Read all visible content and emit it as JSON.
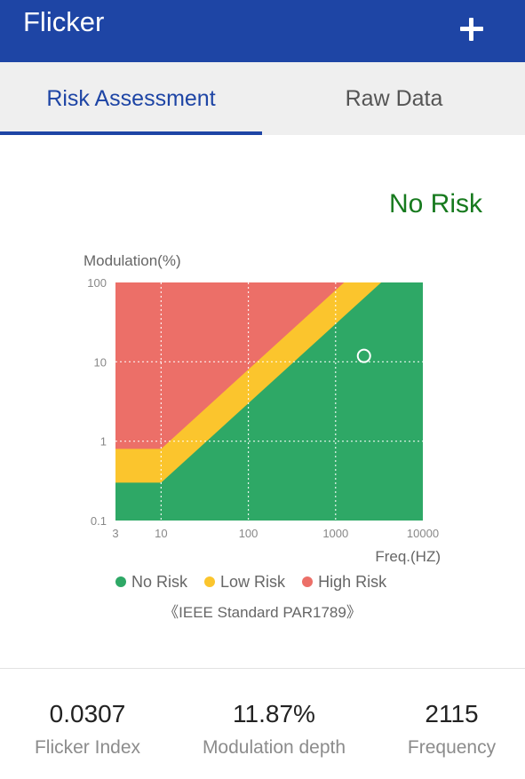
{
  "app": {
    "title": "Flicker",
    "add_icon": "plus-icon"
  },
  "tabs": [
    {
      "label": "Risk Assessment",
      "active": true
    },
    {
      "label": "Raw Data",
      "active": false
    }
  ],
  "result": {
    "risk_label": "No Risk",
    "color": "#177a1e"
  },
  "chart_data": {
    "type": "scatter",
    "xlabel": "Freq.(HZ)",
    "ylabel": "Modulation(%)",
    "x_scale": "log",
    "y_scale": "log",
    "xlim": [
      3,
      10000
    ],
    "ylim": [
      0.1,
      100
    ],
    "x_ticks": [
      "3",
      "10",
      "100",
      "1000",
      "10000"
    ],
    "y_ticks": [
      "100",
      "10",
      "1",
      "0.1"
    ],
    "grid": true,
    "regions": [
      {
        "name": "No Risk",
        "color": "#2ea866"
      },
      {
        "name": "Low Risk",
        "color": "#fbc52d"
      },
      {
        "name": "High Risk",
        "color": "#ec6f68"
      }
    ],
    "points": [
      {
        "x": 2115,
        "y": 11.87
      }
    ],
    "legend": [
      {
        "label": "No Risk",
        "color": "#2ea866"
      },
      {
        "label": "Low Risk",
        "color": "#fbc52d"
      },
      {
        "label": "High Risk",
        "color": "#ec6f68"
      }
    ],
    "standard_note": "《IEEE Standard PAR1789》"
  },
  "stats": [
    {
      "value": "0.0307",
      "label": "Flicker Index"
    },
    {
      "value": "11.87%",
      "label": "Modulation depth"
    },
    {
      "value": "2115",
      "label": "Frequency"
    }
  ]
}
